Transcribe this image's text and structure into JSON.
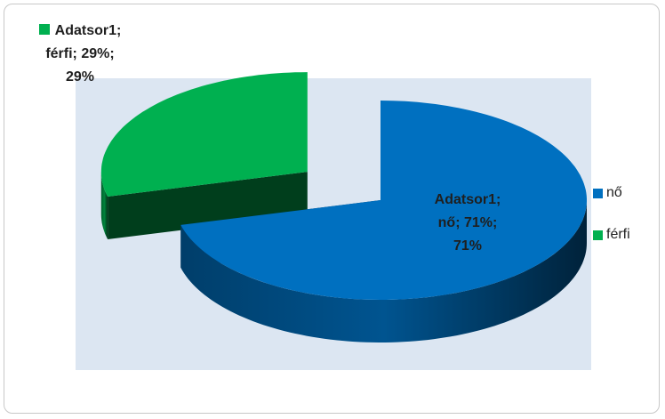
{
  "chart_data": {
    "type": "pie",
    "categories": [
      "nő",
      "férfi"
    ],
    "values": [
      71,
      29
    ],
    "value_labels": [
      "Adatsor1; nő; 71%; 71%",
      "Adatsor1; férfi; 29%; 29%"
    ],
    "colors": [
      "#0070c0",
      "#00b050"
    ],
    "legend": "right"
  }
}
